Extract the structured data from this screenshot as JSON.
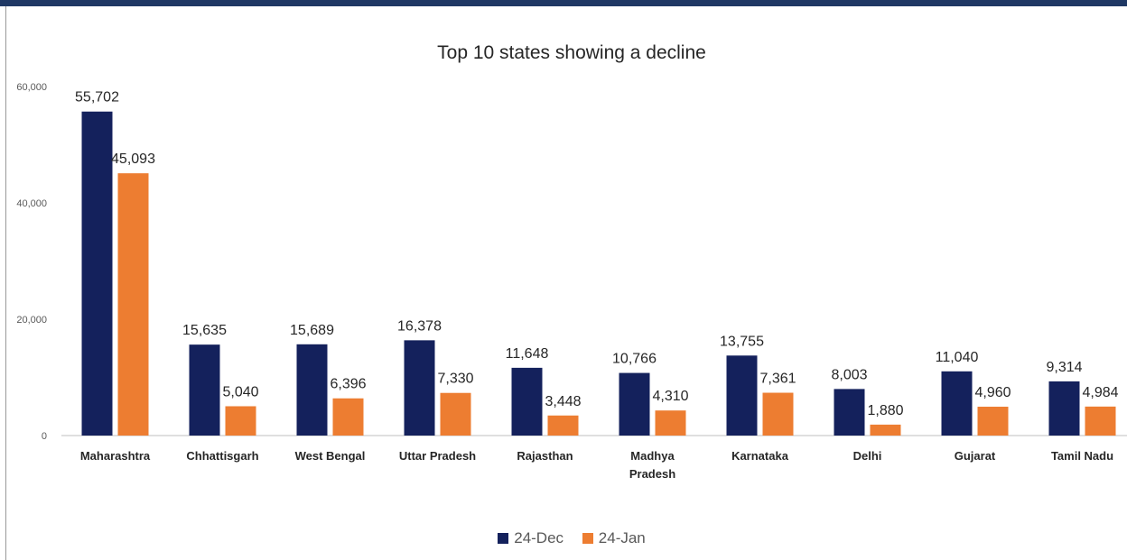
{
  "chart_data": {
    "type": "bar",
    "title": "Top 10 states showing a decline",
    "categories": [
      [
        "Maharashtra"
      ],
      [
        "Chhattisgarh"
      ],
      [
        "West Bengal"
      ],
      [
        "Uttar Pradesh"
      ],
      [
        "Rajasthan"
      ],
      [
        "Madhya",
        "Pradesh"
      ],
      [
        "Karnataka"
      ],
      [
        "Delhi"
      ],
      [
        "Gujarat"
      ],
      [
        "Tamil Nadu"
      ]
    ],
    "series": [
      {
        "name": "24-Dec",
        "color": "#14215c",
        "values": [
          55702,
          15635,
          15689,
          16378,
          11648,
          10766,
          13755,
          8003,
          11040,
          9314
        ],
        "labels": [
          "55,702",
          "15,635",
          "15,689",
          "16,378",
          "11,648",
          "10,766",
          "13,755",
          "8,003",
          "11,040",
          "9,314"
        ]
      },
      {
        "name": "24-Jan",
        "color": "#ed7d31",
        "values": [
          45093,
          5040,
          6396,
          7330,
          3448,
          4310,
          7361,
          1880,
          4960,
          4984
        ],
        "labels": [
          "45,093",
          "5,040",
          "6,396",
          "7,330",
          "3,448",
          "4,310",
          "7,361",
          "1,880",
          "4,960",
          "4,984"
        ]
      }
    ],
    "yticks": [
      {
        "value": 0,
        "label": "0"
      },
      {
        "value": 20000,
        "label": "20,000"
      },
      {
        "value": 40000,
        "label": "40,000"
      },
      {
        "value": 60000,
        "label": "60,000"
      }
    ],
    "ylim": [
      0,
      60000
    ],
    "grid": false,
    "legend_position": "bottom"
  }
}
